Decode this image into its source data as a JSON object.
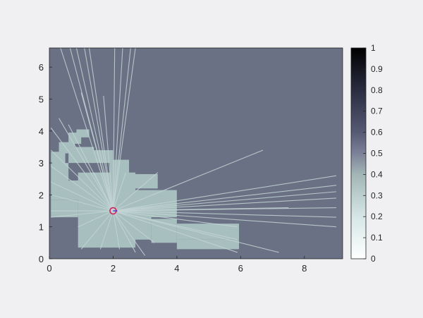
{
  "chart_data": {
    "type": "heatmap",
    "subtype": "occupancy-grid-with-lidar-scan",
    "title": "",
    "xlabel": "",
    "ylabel": "",
    "xlim": [
      0,
      9.2
    ],
    "ylim": [
      0,
      6.6
    ],
    "x_ticks": [
      0,
      2,
      4,
      6,
      8
    ],
    "y_ticks": [
      0,
      1,
      2,
      3,
      4,
      5,
      6
    ],
    "colorbar": {
      "range": [
        0,
        1
      ],
      "ticks": [
        0,
        0.1,
        0.2,
        0.3,
        0.4,
        0.5,
        0.6,
        0.7,
        0.8,
        0.9,
        1
      ],
      "tick_labels": [
        "0",
        "0.1",
        "0.2",
        "0.3",
        "0.4",
        "0.5",
        "0.6",
        "0.7",
        "0.8",
        "0.9",
        "1"
      ],
      "colormap": "bone-reversed",
      "placement": "right"
    },
    "unknown_value": 0.5,
    "unknown_color": "#6a7184",
    "free_color": "#a8bfbf",
    "free_regions": [
      {
        "x0": 0.85,
        "x1": 1.25,
        "y0": 3.8,
        "y1": 4.05
      },
      {
        "x0": 0.6,
        "x1": 1.0,
        "y0": 3.6,
        "y1": 3.95
      },
      {
        "x0": 0.3,
        "x1": 0.8,
        "y0": 3.3,
        "y1": 3.65
      },
      {
        "x0": 0.05,
        "x1": 0.5,
        "y0": 2.9,
        "y1": 3.35
      },
      {
        "x0": 0.05,
        "x1": 0.6,
        "y0": 2.4,
        "y1": 3.0
      },
      {
        "x0": 0.6,
        "x1": 1.4,
        "y0": 3.0,
        "y1": 3.5
      },
      {
        "x0": 1.3,
        "x1": 2.0,
        "y0": 3.0,
        "y1": 3.4
      },
      {
        "x0": 1.9,
        "x1": 2.5,
        "y0": 2.5,
        "y1": 3.1
      },
      {
        "x0": 2.2,
        "x1": 3.4,
        "y0": 2.2,
        "y1": 2.65
      },
      {
        "x0": 0.05,
        "x1": 1.0,
        "y0": 1.85,
        "y1": 2.45
      },
      {
        "x0": 0.05,
        "x1": 0.9,
        "y0": 1.3,
        "y1": 1.85
      },
      {
        "x0": 0.9,
        "x1": 2.7,
        "y0": 0.35,
        "y1": 2.7
      },
      {
        "x0": 2.6,
        "x1": 3.2,
        "y0": 0.6,
        "y1": 1.95
      },
      {
        "x0": 2.6,
        "x1": 4.0,
        "y0": 1.3,
        "y1": 2.15
      },
      {
        "x0": 3.2,
        "x1": 4.0,
        "y0": 0.5,
        "y1": 1.25
      },
      {
        "x0": 4.0,
        "x1": 5.95,
        "y0": 0.6,
        "y1": 1.1
      },
      {
        "x0": 4.0,
        "x1": 5.95,
        "y0": 0.3,
        "y1": 0.6
      }
    ],
    "robot": {
      "x": 2.0,
      "y": 1.5,
      "color": "#d0205a",
      "heading_color": "#3a2fd9"
    },
    "scan_rays": [
      {
        "x": 0.35,
        "y": 6.6
      },
      {
        "x": 0.65,
        "y": 6.6
      },
      {
        "x": 0.85,
        "y": 6.6
      },
      {
        "x": 1.1,
        "y": 6.6
      },
      {
        "x": 1.25,
        "y": 6.6
      },
      {
        "x": 2.05,
        "y": 6.6
      },
      {
        "x": 2.3,
        "y": 6.6
      },
      {
        "x": 2.55,
        "y": 6.6
      },
      {
        "x": 2.7,
        "y": 6.6
      },
      {
        "x": 1.0,
        "y": 5.2
      },
      {
        "x": 1.7,
        "y": 5.1
      },
      {
        "x": 0.6,
        "y": 4.2
      },
      {
        "x": 0.3,
        "y": 4.4
      },
      {
        "x": 0.05,
        "y": 4.1
      },
      {
        "x": 0.05,
        "y": 3.4
      },
      {
        "x": 0.05,
        "y": 2.9
      },
      {
        "x": 0.05,
        "y": 2.4
      },
      {
        "x": 0.05,
        "y": 2.0
      },
      {
        "x": 0.05,
        "y": 1.5
      },
      {
        "x": 0.05,
        "y": 1.3
      },
      {
        "x": 1.0,
        "y": 0.3
      },
      {
        "x": 1.6,
        "y": 0.3
      },
      {
        "x": 2.2,
        "y": 0.3
      },
      {
        "x": 2.7,
        "y": 0.2
      },
      {
        "x": 3.0,
        "y": 0.1
      },
      {
        "x": 3.3,
        "y": 0.5
      },
      {
        "x": 5.9,
        "y": 0.2
      },
      {
        "x": 5.9,
        "y": 0.6
      },
      {
        "x": 7.2,
        "y": 0.2
      },
      {
        "x": 5.9,
        "y": 1.0
      },
      {
        "x": 7.5,
        "y": 1.6
      },
      {
        "x": 9.0,
        "y": 1.0
      },
      {
        "x": 9.0,
        "y": 1.3
      },
      {
        "x": 9.0,
        "y": 1.6
      },
      {
        "x": 9.0,
        "y": 1.9
      },
      {
        "x": 9.0,
        "y": 2.1
      },
      {
        "x": 9.0,
        "y": 2.3
      },
      {
        "x": 9.0,
        "y": 2.6
      },
      {
        "x": 6.7,
        "y": 3.4
      },
      {
        "x": 3.4,
        "y": 2.7
      },
      {
        "x": 2.4,
        "y": 2.7
      },
      {
        "x": 1.4,
        "y": 2.7
      },
      {
        "x": 0.9,
        "y": 1.0
      }
    ]
  }
}
